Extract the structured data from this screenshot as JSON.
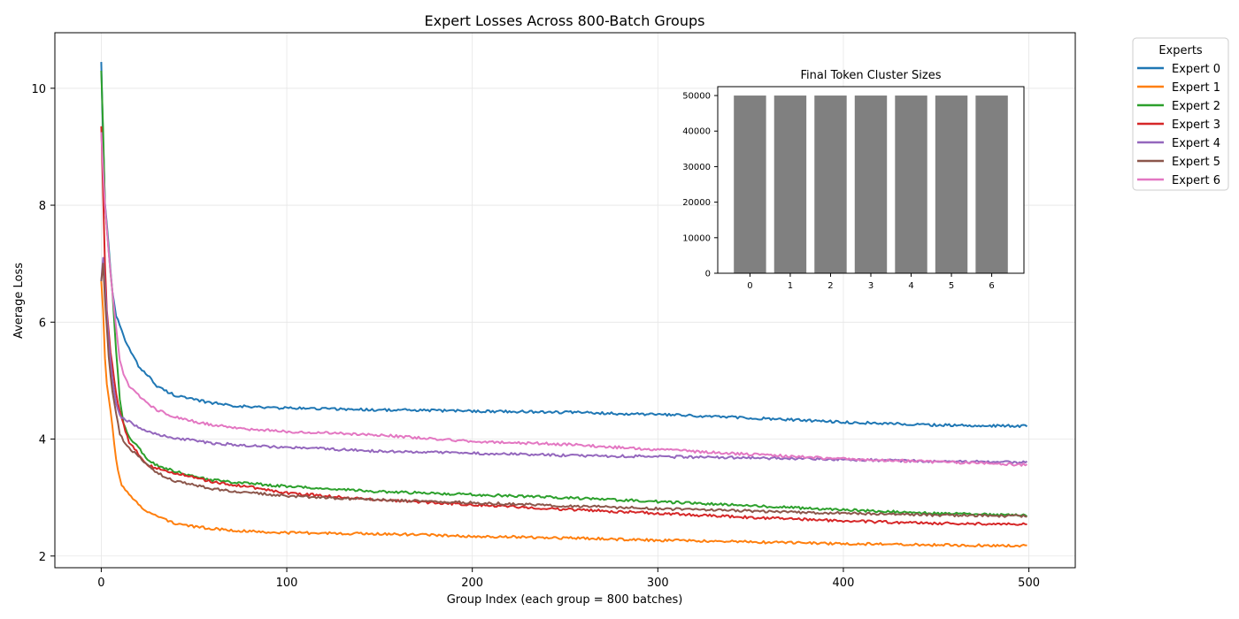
{
  "chart_data": [
    {
      "type": "line",
      "title": "Expert Losses Across 800-Batch Groups",
      "xlabel": "Group Index (each group = 800 batches)",
      "ylabel": "Average Loss",
      "xlim": [
        -25,
        525
      ],
      "ylim": [
        1.8,
        10.95
      ],
      "xticks": [
        0,
        100,
        200,
        300,
        400,
        500
      ],
      "yticks": [
        2,
        4,
        6,
        8,
        10
      ],
      "grid": true,
      "legend": {
        "title": "Experts",
        "placement": "outside-top-right"
      },
      "x_end": 499,
      "series": [
        {
          "name": "Expert 0",
          "color": "#1f77b4",
          "points": [
            [
              0,
              10.45
            ],
            [
              1,
              9.1
            ],
            [
              2,
              8.05
            ],
            [
              4,
              7.3
            ],
            [
              6,
              6.5
            ],
            [
              8,
              6.1
            ],
            [
              10,
              5.95
            ],
            [
              12,
              5.75
            ],
            [
              15,
              5.55
            ],
            [
              20,
              5.25
            ],
            [
              25,
              5.1
            ],
            [
              30,
              4.9
            ],
            [
              35,
              4.82
            ],
            [
              40,
              4.75
            ],
            [
              50,
              4.67
            ],
            [
              60,
              4.62
            ],
            [
              70,
              4.58
            ],
            [
              80,
              4.55
            ],
            [
              100,
              4.53
            ],
            [
              120,
              4.52
            ],
            [
              150,
              4.5
            ],
            [
              200,
              4.48
            ],
            [
              250,
              4.46
            ],
            [
              300,
              4.42
            ],
            [
              350,
              4.36
            ],
            [
              400,
              4.29
            ],
            [
              450,
              4.24
            ],
            [
              499,
              4.22
            ]
          ]
        },
        {
          "name": "Expert 1",
          "color": "#ff7f0e",
          "points": [
            [
              0,
              6.7
            ],
            [
              1,
              6.2
            ],
            [
              2,
              5.4
            ],
            [
              3,
              4.95
            ],
            [
              5,
              4.5
            ],
            [
              7,
              3.9
            ],
            [
              9,
              3.45
            ],
            [
              11,
              3.2
            ],
            [
              15,
              3.05
            ],
            [
              20,
              2.88
            ],
            [
              25,
              2.76
            ],
            [
              30,
              2.68
            ],
            [
              40,
              2.56
            ],
            [
              50,
              2.5
            ],
            [
              60,
              2.47
            ],
            [
              80,
              2.42
            ],
            [
              100,
              2.4
            ],
            [
              150,
              2.38
            ],
            [
              200,
              2.34
            ],
            [
              250,
              2.31
            ],
            [
              300,
              2.27
            ],
            [
              350,
              2.24
            ],
            [
              400,
              2.21
            ],
            [
              450,
              2.19
            ],
            [
              499,
              2.17
            ]
          ]
        },
        {
          "name": "Expert 2",
          "color": "#2ca02c",
          "points": [
            [
              0,
              10.3
            ],
            [
              1,
              9.3
            ],
            [
              2,
              8.0
            ],
            [
              4,
              7.2
            ],
            [
              6,
              6.5
            ],
            [
              8,
              5.5
            ],
            [
              10,
              4.7
            ],
            [
              12,
              4.25
            ],
            [
              15,
              4.05
            ],
            [
              20,
              3.85
            ],
            [
              25,
              3.65
            ],
            [
              30,
              3.55
            ],
            [
              40,
              3.45
            ],
            [
              50,
              3.35
            ],
            [
              60,
              3.3
            ],
            [
              80,
              3.24
            ],
            [
              100,
              3.19
            ],
            [
              150,
              3.1
            ],
            [
              200,
              3.05
            ],
            [
              250,
              3.0
            ],
            [
              300,
              2.93
            ],
            [
              350,
              2.86
            ],
            [
              400,
              2.79
            ],
            [
              450,
              2.73
            ],
            [
              499,
              2.69
            ]
          ]
        },
        {
          "name": "Expert 3",
          "color": "#d62728",
          "points": [
            [
              0,
              9.35
            ],
            [
              1,
              8.2
            ],
            [
              2,
              7.0
            ],
            [
              3,
              6.2
            ],
            [
              5,
              5.5
            ],
            [
              7,
              5.0
            ],
            [
              9,
              4.6
            ],
            [
              12,
              4.25
            ],
            [
              15,
              3.95
            ],
            [
              20,
              3.75
            ],
            [
              25,
              3.55
            ],
            [
              30,
              3.5
            ],
            [
              40,
              3.42
            ],
            [
              50,
              3.34
            ],
            [
              60,
              3.27
            ],
            [
              80,
              3.18
            ],
            [
              100,
              3.08
            ],
            [
              150,
              2.96
            ],
            [
              200,
              2.88
            ],
            [
              250,
              2.8
            ],
            [
              300,
              2.73
            ],
            [
              350,
              2.66
            ],
            [
              400,
              2.6
            ],
            [
              450,
              2.56
            ],
            [
              499,
              2.54
            ]
          ]
        },
        {
          "name": "Expert 4",
          "color": "#9467bd",
          "points": [
            [
              0,
              6.7
            ],
            [
              1,
              7.1
            ],
            [
              2,
              6.6
            ],
            [
              4,
              5.7
            ],
            [
              6,
              5.0
            ],
            [
              8,
              4.6
            ],
            [
              10,
              4.4
            ],
            [
              12,
              4.35
            ],
            [
              15,
              4.3
            ],
            [
              20,
              4.2
            ],
            [
              25,
              4.12
            ],
            [
              30,
              4.08
            ],
            [
              40,
              4.02
            ],
            [
              50,
              3.97
            ],
            [
              60,
              3.93
            ],
            [
              80,
              3.89
            ],
            [
              100,
              3.86
            ],
            [
              150,
              3.79
            ],
            [
              200,
              3.76
            ],
            [
              250,
              3.72
            ],
            [
              300,
              3.7
            ],
            [
              350,
              3.68
            ],
            [
              400,
              3.65
            ],
            [
              450,
              3.62
            ],
            [
              499,
              3.6
            ]
          ]
        },
        {
          "name": "Expert 5",
          "color": "#8c564b",
          "points": [
            [
              0,
              6.7
            ],
            [
              1,
              7.0
            ],
            [
              2,
              6.4
            ],
            [
              4,
              5.4
            ],
            [
              6,
              4.8
            ],
            [
              8,
              4.45
            ],
            [
              10,
              4.1
            ],
            [
              12,
              3.95
            ],
            [
              15,
              3.85
            ],
            [
              20,
              3.7
            ],
            [
              25,
              3.55
            ],
            [
              30,
              3.42
            ],
            [
              40,
              3.28
            ],
            [
              50,
              3.21
            ],
            [
              60,
              3.15
            ],
            [
              80,
              3.08
            ],
            [
              100,
              3.03
            ],
            [
              150,
              2.96
            ],
            [
              200,
              2.91
            ],
            [
              250,
              2.86
            ],
            [
              300,
              2.81
            ],
            [
              350,
              2.77
            ],
            [
              400,
              2.73
            ],
            [
              450,
              2.7
            ],
            [
              499,
              2.68
            ]
          ]
        },
        {
          "name": "Expert 6",
          "color": "#e377c2",
          "points": [
            [
              0,
              9.25
            ],
            [
              1,
              8.6
            ],
            [
              2,
              8.0
            ],
            [
              4,
              7.2
            ],
            [
              6,
              6.5
            ],
            [
              8,
              5.9
            ],
            [
              10,
              5.35
            ],
            [
              12,
              5.1
            ],
            [
              15,
              4.9
            ],
            [
              20,
              4.75
            ],
            [
              25,
              4.6
            ],
            [
              30,
              4.5
            ],
            [
              40,
              4.38
            ],
            [
              50,
              4.3
            ],
            [
              60,
              4.24
            ],
            [
              80,
              4.17
            ],
            [
              100,
              4.13
            ],
            [
              150,
              4.07
            ],
            [
              200,
              3.96
            ],
            [
              250,
              3.91
            ],
            [
              300,
              3.82
            ],
            [
              350,
              3.74
            ],
            [
              400,
              3.66
            ],
            [
              450,
              3.61
            ],
            [
              499,
              3.56
            ]
          ]
        }
      ]
    },
    {
      "type": "bar",
      "title": "Final Token Cluster Sizes",
      "categories": [
        "0",
        "1",
        "2",
        "3",
        "4",
        "5",
        "6"
      ],
      "values": [
        50000,
        50000,
        50000,
        50000,
        50000,
        50000,
        50000
      ],
      "yticks": [
        0,
        10000,
        20000,
        30000,
        40000,
        50000
      ],
      "ylim": [
        0,
        52500
      ],
      "bar_color": "#808080"
    }
  ]
}
